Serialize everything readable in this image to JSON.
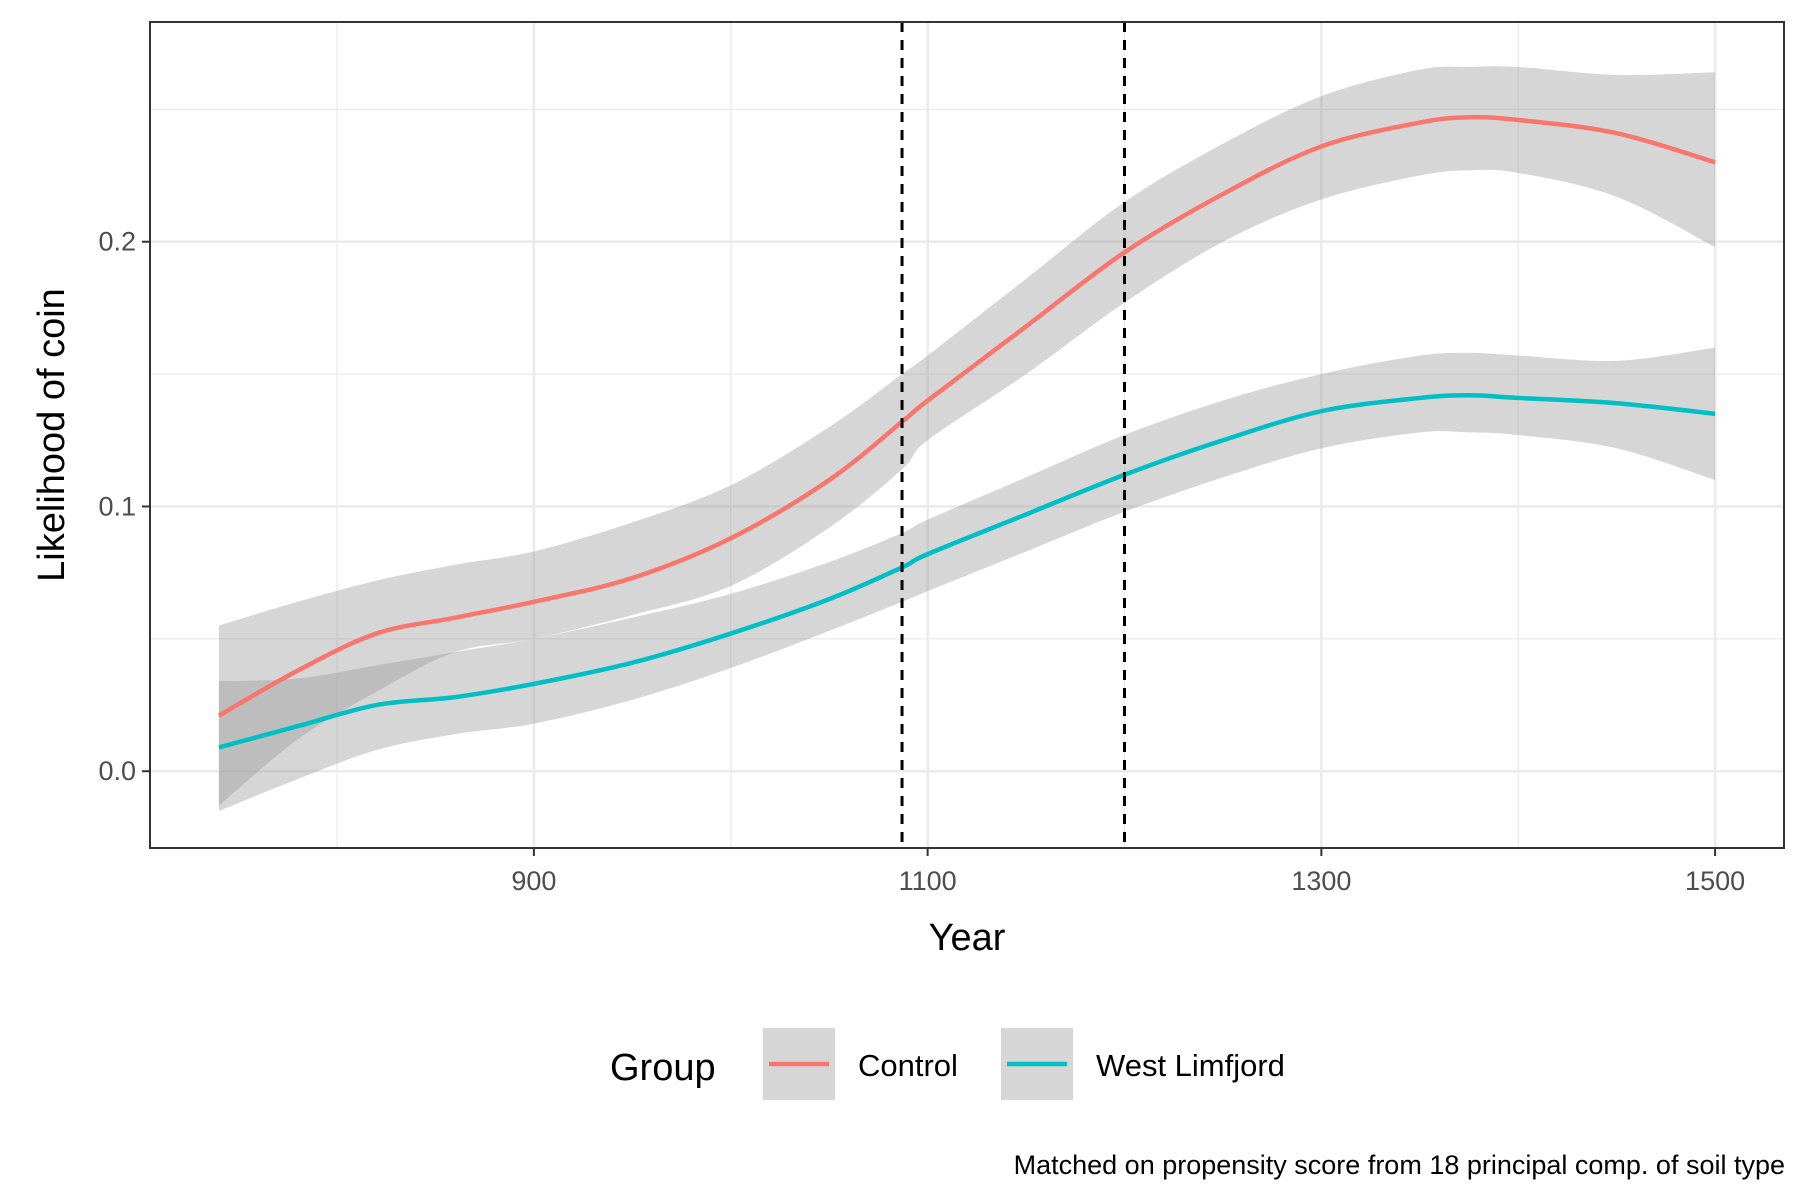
{
  "chart_data": {
    "type": "line",
    "title": "",
    "xlabel": "Year",
    "ylabel": "Likelihood of coin",
    "caption": "Matched on propensity score from 18 principal comp. of soil type",
    "xlim": [
      705,
      1535
    ],
    "ylim": [
      -0.029,
      0.283
    ],
    "x_ticks": [
      900,
      1100,
      1300,
      1500
    ],
    "x_tick_labels": [
      "900",
      "1100",
      "1300",
      "1500"
    ],
    "y_ticks": [
      0.0,
      0.1,
      0.2
    ],
    "y_tick_labels": [
      "0.0",
      "0.1",
      "0.2"
    ],
    "grid": true,
    "vlines": [
      1087,
      1200
    ],
    "legend": {
      "title": "Group",
      "position": "bottom"
    },
    "x": [
      740,
      780,
      820,
      860,
      900,
      950,
      1000,
      1050,
      1087,
      1100,
      1150,
      1200,
      1250,
      1300,
      1350,
      1375,
      1400,
      1450,
      1500
    ],
    "series": [
      {
        "name": "Control",
        "color": "#F8766D",
        "values": [
          0.021,
          0.038,
          0.052,
          0.058,
          0.064,
          0.073,
          0.088,
          0.11,
          0.132,
          0.14,
          0.168,
          0.196,
          0.218,
          0.236,
          0.245,
          0.247,
          0.246,
          0.241,
          0.23
        ],
        "lower": [
          -0.013,
          0.012,
          0.03,
          0.045,
          0.05,
          0.059,
          0.07,
          0.092,
          0.114,
          0.125,
          0.15,
          0.177,
          0.2,
          0.216,
          0.225,
          0.227,
          0.226,
          0.217,
          0.198
        ],
        "upper": [
          0.055,
          0.064,
          0.072,
          0.078,
          0.083,
          0.094,
          0.108,
          0.13,
          0.15,
          0.157,
          0.186,
          0.215,
          0.237,
          0.255,
          0.265,
          0.266,
          0.266,
          0.263,
          0.264
        ]
      },
      {
        "name": "West Limfjord",
        "color": "#00BFC4",
        "values": [
          0.009,
          0.017,
          0.025,
          0.028,
          0.033,
          0.041,
          0.052,
          0.065,
          0.077,
          0.082,
          0.097,
          0.112,
          0.125,
          0.136,
          0.141,
          0.142,
          0.141,
          0.139,
          0.135
        ],
        "lower": [
          -0.015,
          -0.003,
          0.008,
          0.014,
          0.018,
          0.027,
          0.039,
          0.053,
          0.064,
          0.068,
          0.083,
          0.098,
          0.111,
          0.122,
          0.128,
          0.128,
          0.127,
          0.122,
          0.11
        ],
        "upper": [
          0.034,
          0.035,
          0.04,
          0.045,
          0.05,
          0.058,
          0.067,
          0.079,
          0.09,
          0.095,
          0.111,
          0.127,
          0.14,
          0.15,
          0.157,
          0.158,
          0.157,
          0.155,
          0.16
        ]
      }
    ]
  }
}
